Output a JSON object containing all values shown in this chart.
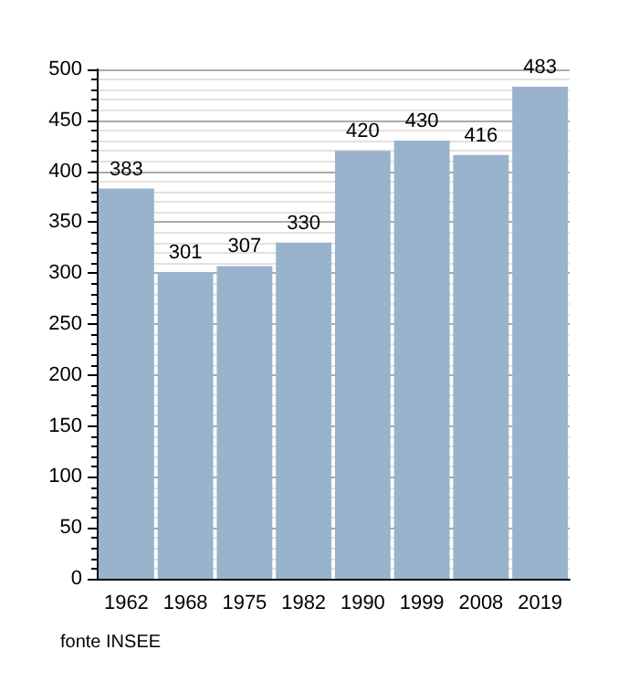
{
  "chart_data": {
    "type": "bar",
    "categories": [
      "1962",
      "1968",
      "1975",
      "1982",
      "1990",
      "1999",
      "2008",
      "2019"
    ],
    "values": [
      383,
      301,
      307,
      330,
      420,
      430,
      416,
      483
    ],
    "color": "#9ab3cc",
    "data_labels": true,
    "ylim": [
      0,
      500
    ],
    "yticks": [
      0,
      50,
      100,
      150,
      200,
      250,
      300,
      350,
      400,
      450,
      500
    ],
    "grid": "y",
    "annotations": [
      "fonte INSEE"
    ]
  }
}
